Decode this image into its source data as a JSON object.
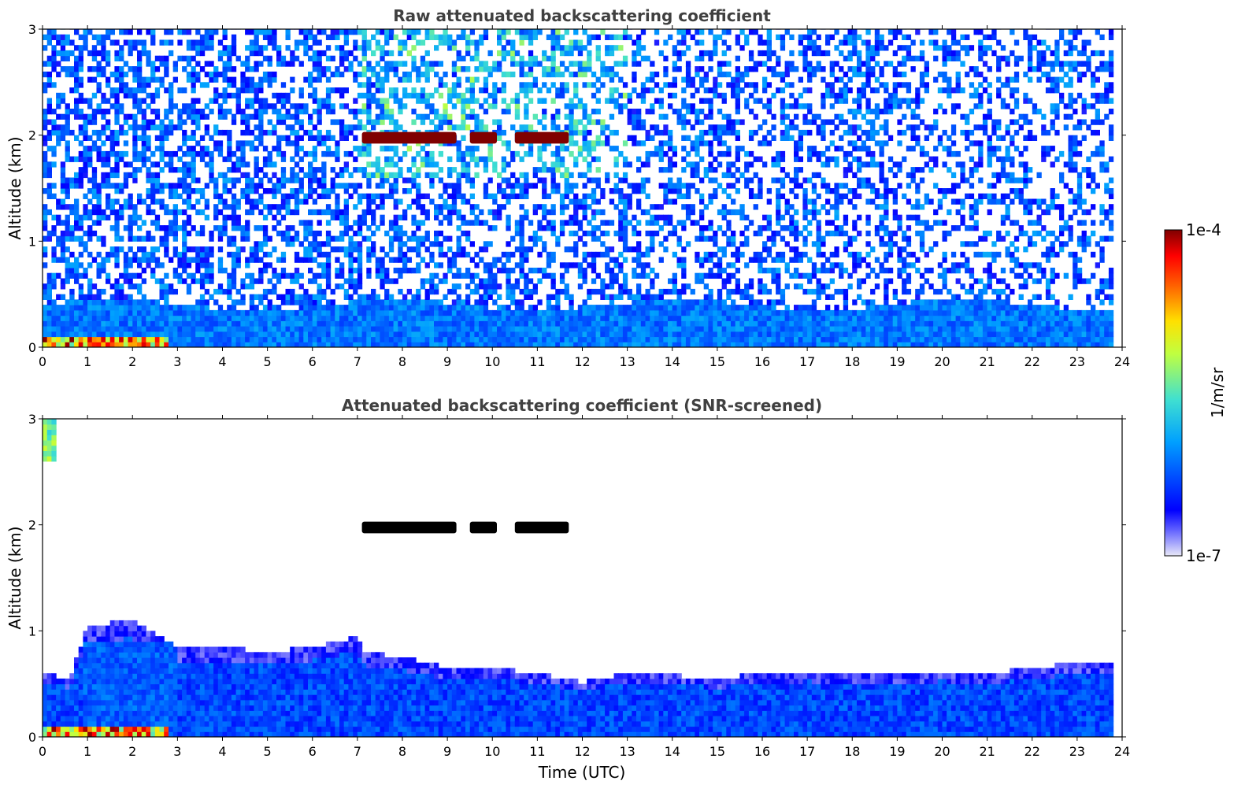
{
  "chart_data": [
    {
      "type": "heatmap",
      "title": "Raw attenuated backscattering coefficient",
      "ylabel": "Altitude (km)",
      "xlabel": "",
      "xlim": [
        0,
        24
      ],
      "ylim": [
        0,
        3
      ],
      "x_ticks": [
        "0",
        "1",
        "2",
        "3",
        "4",
        "5",
        "6",
        "7",
        "8",
        "9",
        "10",
        "11",
        "12",
        "13",
        "14",
        "15",
        "16",
        "17",
        "18",
        "19",
        "20",
        "21",
        "22",
        "23",
        "24"
      ],
      "y_ticks": [
        "0",
        "1",
        "2",
        "3"
      ],
      "data_extent_x": [
        0,
        23.8
      ],
      "features": [
        {
          "kind": "boundary_layer",
          "x_range": [
            0,
            23.8
          ],
          "top_km": 0.4,
          "level": 0.32
        },
        {
          "kind": "cloud",
          "x_range": [
            7.1,
            11.7
          ],
          "alt_km": [
            1.92,
            2.03
          ],
          "level": 1.0
        },
        {
          "kind": "surface_layer",
          "x_range": [
            0,
            2.8
          ],
          "alt_km": [
            0,
            0.08
          ],
          "level": 0.95
        },
        {
          "kind": "aerosol_plume",
          "x_range": [
            7.0,
            13.0
          ],
          "alt_km": [
            1.8,
            3.0
          ],
          "level": 0.55
        },
        {
          "kind": "noise_background",
          "x_range": [
            0,
            23.8
          ],
          "alt_km": [
            0.4,
            3.0
          ],
          "level": 0.35
        }
      ]
    },
    {
      "type": "heatmap",
      "title": "Attenuated backscattering coefficient (SNR-screened)",
      "ylabel": "Altitude (km)",
      "xlabel": "Time (UTC)",
      "xlim": [
        0,
        24
      ],
      "ylim": [
        0,
        3
      ],
      "x_ticks": [
        "0",
        "1",
        "2",
        "3",
        "4",
        "5",
        "6",
        "7",
        "8",
        "9",
        "10",
        "11",
        "12",
        "13",
        "14",
        "15",
        "16",
        "17",
        "18",
        "19",
        "20",
        "21",
        "22",
        "23",
        "24"
      ],
      "y_ticks": [
        "0",
        "1",
        "2",
        "3"
      ],
      "data_extent_x": [
        0,
        23.8
      ],
      "boundary_layer_top": {
        "x": [
          0,
          0.6,
          1.0,
          2.0,
          3.0,
          4.0,
          5.0,
          6.0,
          7.0,
          7.1,
          8.0,
          9.0,
          10.0,
          11.0,
          12.0,
          13.0,
          14.0,
          15.0,
          16.0,
          17.0,
          18.0,
          19.0,
          20.0,
          21.0,
          22.0,
          23.0,
          23.8
        ],
        "y": [
          0.6,
          0.55,
          1.05,
          1.1,
          0.85,
          0.85,
          0.8,
          0.85,
          0.95,
          0.8,
          0.75,
          0.65,
          0.65,
          0.6,
          0.52,
          0.6,
          0.58,
          0.55,
          0.6,
          0.62,
          0.6,
          0.58,
          0.62,
          0.6,
          0.65,
          0.7,
          0.72
        ]
      },
      "features": [
        {
          "kind": "cloud",
          "x_range": [
            7.1,
            11.7
          ],
          "alt_km": [
            1.92,
            2.03
          ],
          "level": "black"
        },
        {
          "kind": "surface_layer",
          "x_range": [
            0,
            2.8
          ],
          "alt_km": [
            0,
            0.08
          ],
          "level": 0.95
        },
        {
          "kind": "aerosol_streak",
          "x_range": [
            0,
            0.35
          ],
          "alt_km": [
            2.6,
            3.0
          ],
          "level": 0.6
        }
      ]
    }
  ],
  "colorbar": {
    "colormap": "jet",
    "max_label": "1e-4",
    "min_label": "1e-7",
    "label": "1/m/sr",
    "colors": [
      "#e8e8f8",
      "#0000ff",
      "#00a0ff",
      "#40e0d0",
      "#c0ff40",
      "#ffe000",
      "#ff6000",
      "#ff0000",
      "#800000"
    ]
  }
}
